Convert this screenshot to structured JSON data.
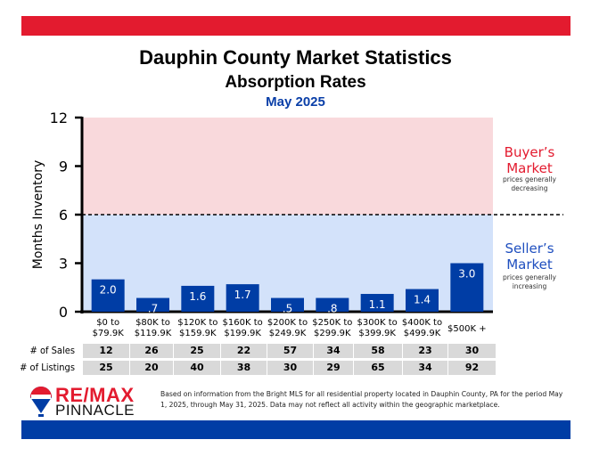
{
  "header": {
    "title": "Dauphin County Market Statistics",
    "subtitle": "Absorption Rates",
    "date": "May 2025"
  },
  "colors": {
    "top_bar": "#e31b2f",
    "bottom_bar": "#003da5",
    "bar": "#003da5",
    "buyer_zone": "#f9d9dc",
    "seller_zone": "#d3e2fa",
    "buyer_text": "#e31b2f",
    "seller_text": "#1f4fbf"
  },
  "chart_data": {
    "type": "bar",
    "ylabel": "Months Inventory",
    "ylim": [
      0,
      12
    ],
    "yticks": [
      0,
      3,
      6,
      9,
      12
    ],
    "threshold": 6,
    "categories": [
      "$0 to\n$79.9K",
      "$80K to\n$119.9K",
      "$120K to\n$159.9K",
      "$160K to\n$199.9K",
      "$200K to\n$249.9K",
      "$250K to\n$299.9K",
      "$300K to\n$399.9K",
      "$400K to\n$499.9K",
      "$500K +"
    ],
    "values": [
      2.0,
      0.7,
      1.6,
      1.7,
      0.5,
      0.8,
      1.1,
      1.4,
      3.0
    ],
    "value_labels": [
      "2.0",
      ".7",
      "1.6",
      "1.7",
      ".5",
      ".8",
      "1.1",
      "1.4",
      "3.0"
    ],
    "annotations": {
      "buyer": {
        "title": [
          "Buyer’s",
          "Market"
        ],
        "note": [
          "prices generally",
          "decreasing"
        ]
      },
      "seller": {
        "title": [
          "Seller’s",
          "Market"
        ],
        "note": [
          "prices generally",
          "increasing"
        ]
      }
    }
  },
  "table": {
    "rows": [
      {
        "label": "# of Sales",
        "values": [
          "12",
          "26",
          "25",
          "22",
          "57",
          "34",
          "58",
          "23",
          "30"
        ]
      },
      {
        "label": "# of Listings",
        "values": [
          "25",
          "20",
          "40",
          "38",
          "30",
          "29",
          "65",
          "34",
          "92"
        ]
      }
    ]
  },
  "footer": {
    "brand": "RE/MAX",
    "brand_sub": "PINNACLE",
    "balloon_text": "RE/MAX",
    "disclaimer": "Based on information from the Bright MLS for all residential property located in Dauphin County, PA for the period May 1, 2025, through May 31, 2025.  Data may not reflect all activity within the geographic marketplace."
  }
}
